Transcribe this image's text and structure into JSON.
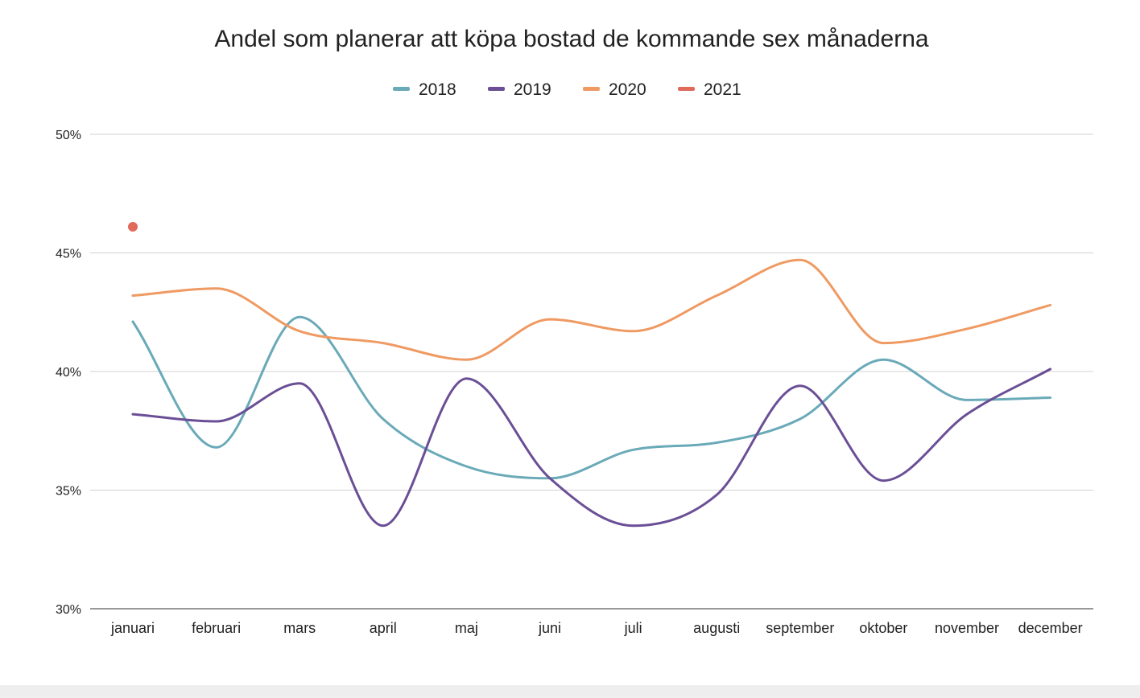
{
  "chart_data": {
    "type": "line",
    "title": "Andel som planerar att köpa bostad de kommande sex månaderna",
    "xlabel": "",
    "ylabel": "",
    "categories": [
      "januari",
      "februari",
      "mars",
      "april",
      "maj",
      "juni",
      "juli",
      "augusti",
      "september",
      "oktober",
      "november",
      "december"
    ],
    "ylim": [
      30,
      50
    ],
    "yticks": [
      30,
      35,
      40,
      45,
      50
    ],
    "ytick_labels": [
      "30%",
      "35%",
      "40%",
      "45%",
      "50%"
    ],
    "grid": true,
    "legend": "top-center",
    "series": [
      {
        "name": "2018",
        "color": "#6aaab8",
        "values": [
          42.1,
          36.8,
          42.3,
          38.0,
          36.0,
          35.5,
          36.7,
          37.0,
          38.0,
          40.5,
          38.8,
          38.9
        ]
      },
      {
        "name": "2019",
        "color": "#6b4f96",
        "values": [
          38.2,
          37.9,
          39.5,
          33.5,
          39.7,
          35.5,
          33.5,
          34.8,
          39.4,
          35.4,
          38.2,
          40.1
        ]
      },
      {
        "name": "2020",
        "color": "#ef9a62",
        "values": [
          43.2,
          43.5,
          41.7,
          41.2,
          40.5,
          42.2,
          41.7,
          43.2,
          44.7,
          41.2,
          41.8,
          42.8
        ]
      },
      {
        "name": "2021",
        "color": "#e06b5c",
        "values": [
          46.1,
          null,
          null,
          null,
          null,
          null,
          null,
          null,
          null,
          null,
          null,
          null
        ]
      }
    ]
  }
}
